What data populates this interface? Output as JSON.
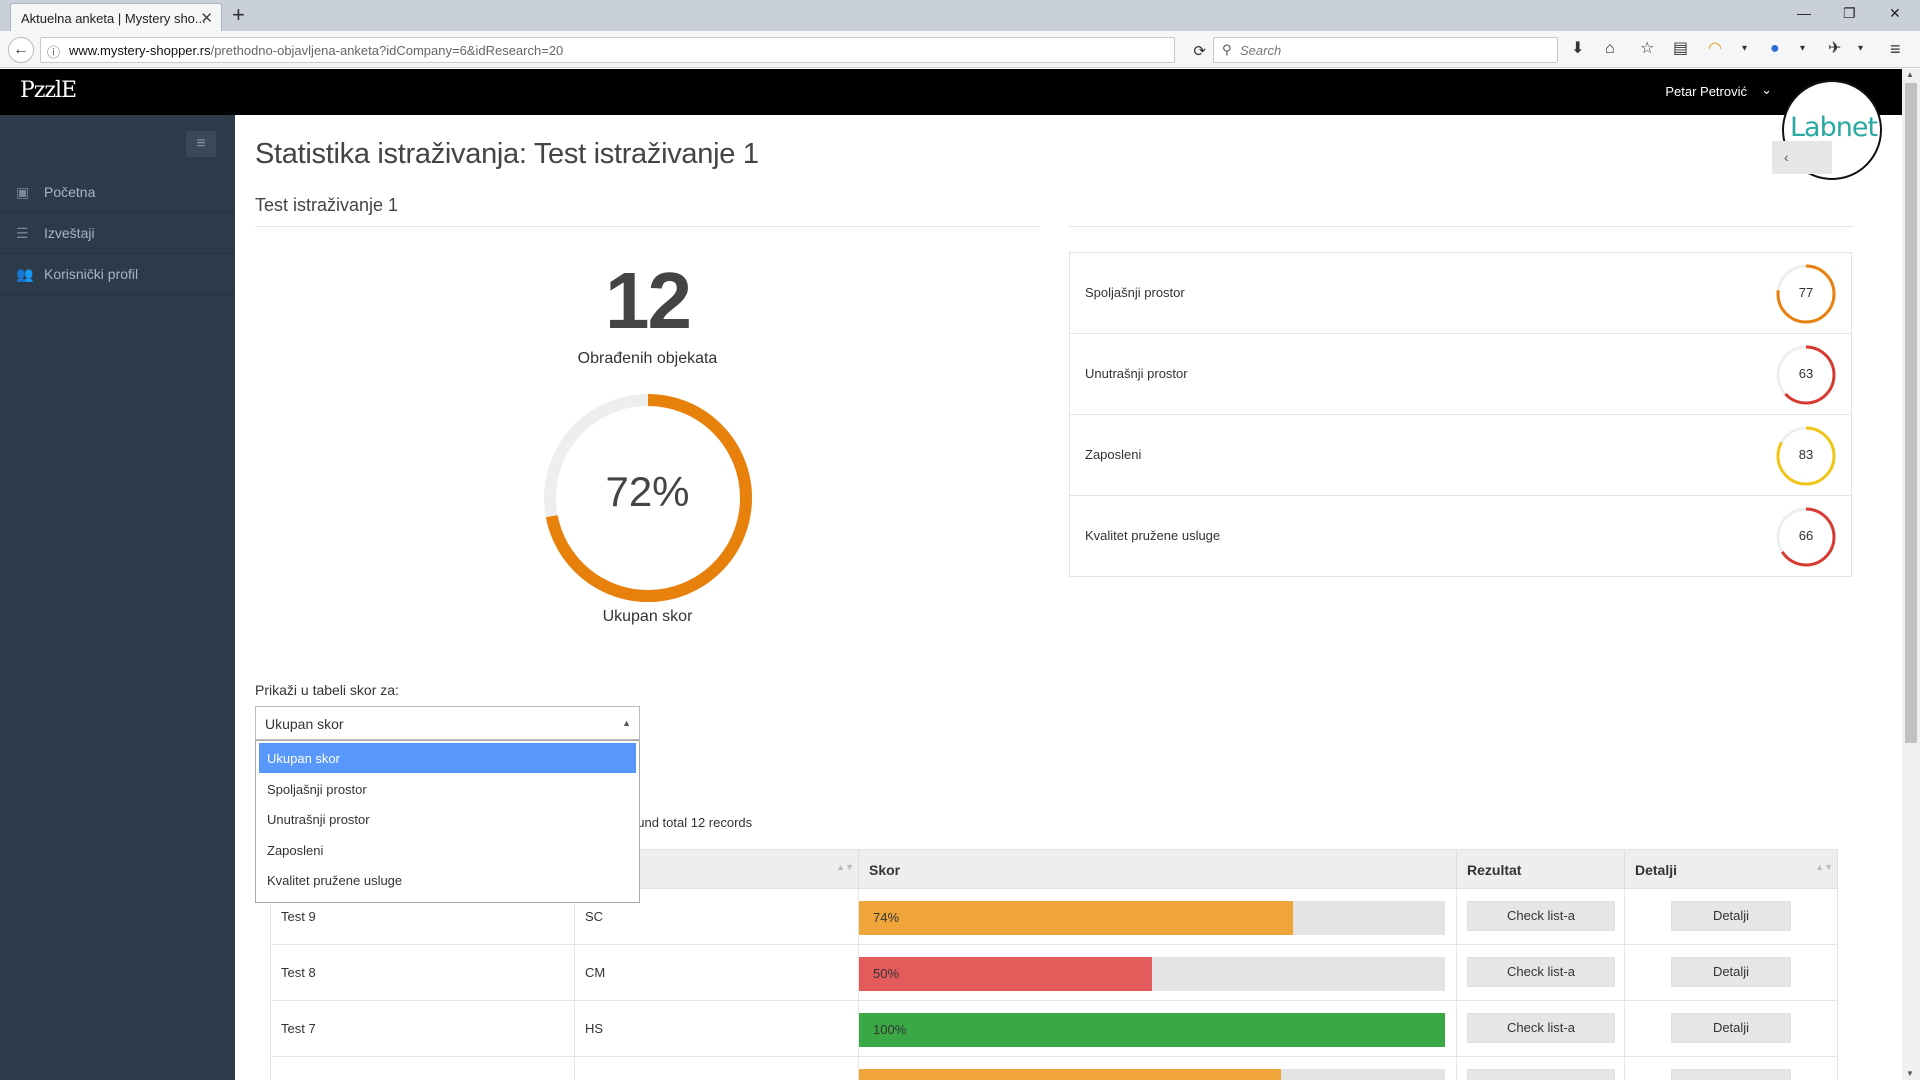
{
  "browser": {
    "tab_title": "Aktuelna anketa | Mystery sho...",
    "url_domain": "www.mystery-shopper.rs",
    "url_path": "/prethodno-objavljena-anketa?idCompany=6&idResearch=20",
    "search_placeholder": "Search"
  },
  "header": {
    "logo_text": "PzzlE",
    "user_name": "Petar Petrović",
    "partner_logo_text": "Labnet"
  },
  "sidebar": {
    "items": [
      {
        "label": "Početna",
        "icon": "briefcase-icon"
      },
      {
        "label": "Izveštaji",
        "icon": "list-icon"
      },
      {
        "label": "Korisnički profil",
        "icon": "users-icon"
      }
    ]
  },
  "main": {
    "page_title": "Statistika istraživanja: Test istraživanje 1",
    "subtitle": "Test istraživanje 1",
    "processed_count": "12",
    "processed_label": "Obrađenih objekata",
    "total_score": 72,
    "total_score_text": "72%",
    "total_score_label": "Ukupan skor",
    "total_score_color": "#e8800c",
    "categories": [
      {
        "name": "Spoljašnji prostor",
        "score": 77,
        "score_text": "77",
        "color": "#e8800c"
      },
      {
        "name": "Unutrašnji prostor",
        "score": 63,
        "score_text": "63",
        "color": "#d63a30"
      },
      {
        "name": "Zaposleni",
        "score": 83,
        "score_text": "83",
        "color": "#f0c419"
      },
      {
        "name": "Kvalitet pružene usluge",
        "score": 66,
        "score_text": "66",
        "color": "#d63a30"
      }
    ]
  },
  "filter": {
    "label": "Prikaži u tabeli skor za:",
    "selected": "Ukupan skor",
    "options": [
      "Ukupan skor",
      "Spoljašnji prostor",
      "Unutrašnji prostor",
      "Zaposleni",
      "Kvalitet pružene usluge"
    ]
  },
  "table": {
    "records_text": "ound total 12 records",
    "headers": [
      "",
      "cija",
      "Skor",
      "Rezultat",
      "Detalji"
    ],
    "rows": [
      {
        "name": "Test 9",
        "code": "SC",
        "score": 74,
        "score_text": "74%",
        "color": "#f0a53a",
        "result_label": "Check list-a",
        "details_label": "Detalji"
      },
      {
        "name": "Test 8",
        "code": "CM",
        "score": 50,
        "score_text": "50%",
        "color": "#e45b5b",
        "result_label": "Check list-a",
        "details_label": "Detalji"
      },
      {
        "name": "Test 7",
        "code": "HS",
        "score": 100,
        "score_text": "100%",
        "color": "#3aa845",
        "result_label": "Check list-a",
        "details_label": "Detalji"
      },
      {
        "name": "",
        "code": "",
        "score": 72,
        "score_text": "",
        "color": "#f0a53a",
        "result_label": "",
        "details_label": ""
      }
    ]
  }
}
